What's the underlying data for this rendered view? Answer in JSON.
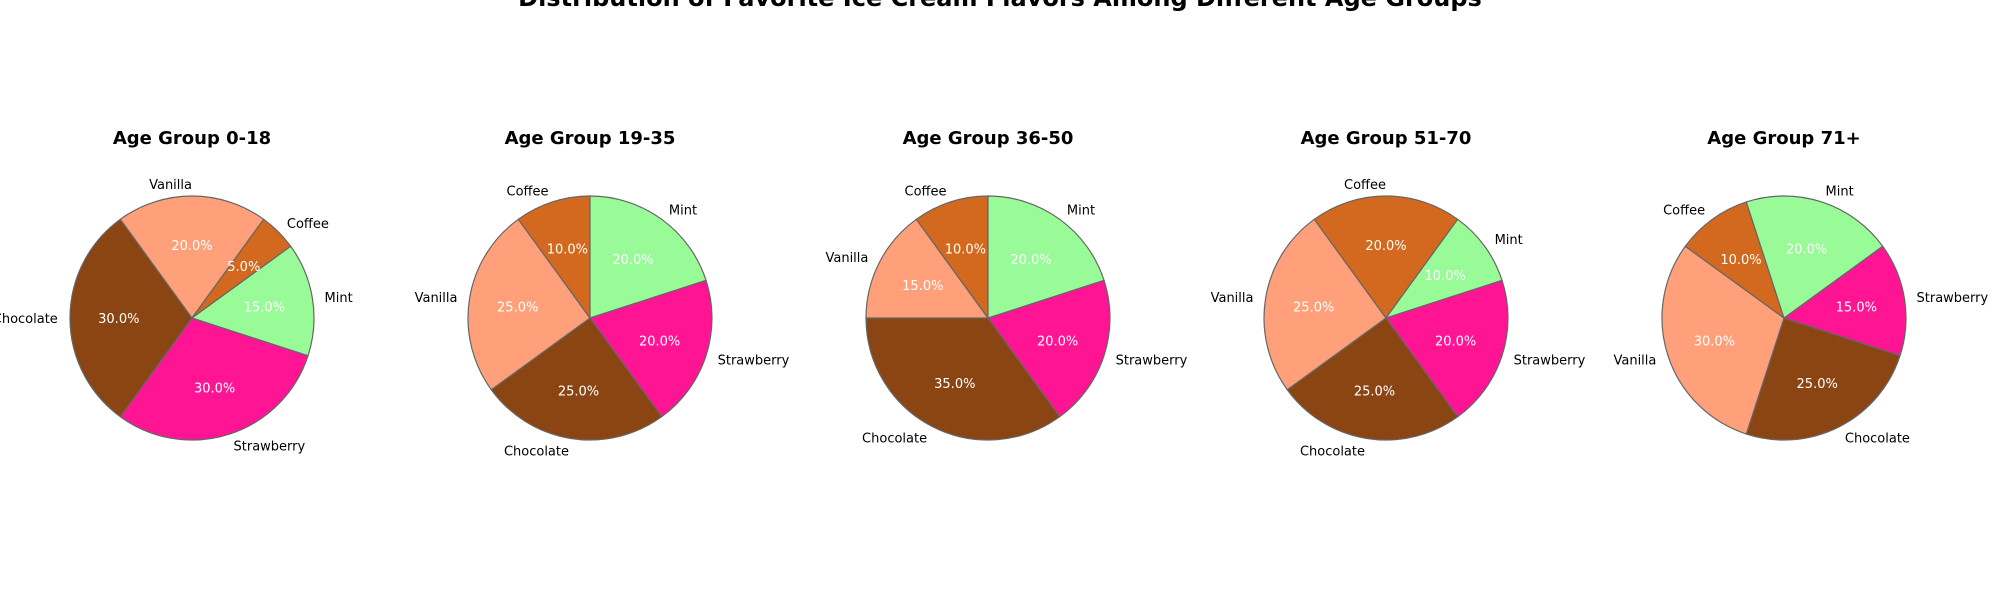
{
  "chart_data": {
    "title": "Distribution of Favorite Ice Cream Flavors Among Different Age Groups",
    "type": "pie",
    "colors": {
      "Chocolate": "#8B4513",
      "Vanilla": "#FFA07A",
      "Coffee": "#D2691E",
      "Mint": "#98FB98",
      "Strawberry": "#FF1493"
    },
    "charts": [
      {
        "title": "Age Group 0-18",
        "slices": [
          {
            "label": "Strawberry",
            "value": 30.0,
            "pct_label": "30.0%"
          },
          {
            "label": "Chocolate",
            "value": 30.0,
            "pct_label": "30.0%"
          },
          {
            "label": "Vanilla",
            "value": 20.0,
            "pct_label": "20.0%"
          },
          {
            "label": "Coffee",
            "value": 5.0,
            "pct_label": "5.0%"
          },
          {
            "label": "Mint",
            "value": 15.0,
            "pct_label": "15.0%"
          }
        ]
      },
      {
        "title": "Age Group 19-35",
        "slices": [
          {
            "label": "Strawberry",
            "value": 20.0,
            "pct_label": "20.0%"
          },
          {
            "label": "Chocolate",
            "value": 25.0,
            "pct_label": "25.0%"
          },
          {
            "label": "Vanilla",
            "value": 25.0,
            "pct_label": "25.0%"
          },
          {
            "label": "Coffee",
            "value": 10.0,
            "pct_label": "10.0%"
          },
          {
            "label": "Mint",
            "value": 20.0,
            "pct_label": "20.0%"
          }
        ]
      },
      {
        "title": "Age Group 36-50",
        "slices": [
          {
            "label": "Strawberry",
            "value": 20.0,
            "pct_label": "20.0%"
          },
          {
            "label": "Chocolate",
            "value": 35.0,
            "pct_label": "35.0%"
          },
          {
            "label": "Vanilla",
            "value": 15.0,
            "pct_label": "15.0%"
          },
          {
            "label": "Coffee",
            "value": 10.0,
            "pct_label": "10.0%"
          },
          {
            "label": "Mint",
            "value": 20.0,
            "pct_label": "20.0%"
          }
        ]
      },
      {
        "title": "Age Group 51-70",
        "slices": [
          {
            "label": "Strawberry",
            "value": 20.0,
            "pct_label": "20.0%"
          },
          {
            "label": "Chocolate",
            "value": 25.0,
            "pct_label": "25.0%"
          },
          {
            "label": "Vanilla",
            "value": 25.0,
            "pct_label": "25.0%"
          },
          {
            "label": "Coffee",
            "value": 20.0,
            "pct_label": "20.0%"
          },
          {
            "label": "Mint",
            "value": 10.0,
            "pct_label": "10.0%"
          }
        ]
      },
      {
        "title": "Age Group 71+",
        "slices": [
          {
            "label": "Strawberry",
            "value": 15.0,
            "pct_label": "15.0%"
          },
          {
            "label": "Chocolate",
            "value": 25.0,
            "pct_label": "25.0%"
          },
          {
            "label": "Vanilla",
            "value": 30.0,
            "pct_label": "30.0%"
          },
          {
            "label": "Coffee",
            "value": 10.0,
            "pct_label": "10.0%"
          },
          {
            "label": "Mint",
            "value": 20.0,
            "pct_label": "20.0%"
          }
        ]
      }
    ]
  }
}
